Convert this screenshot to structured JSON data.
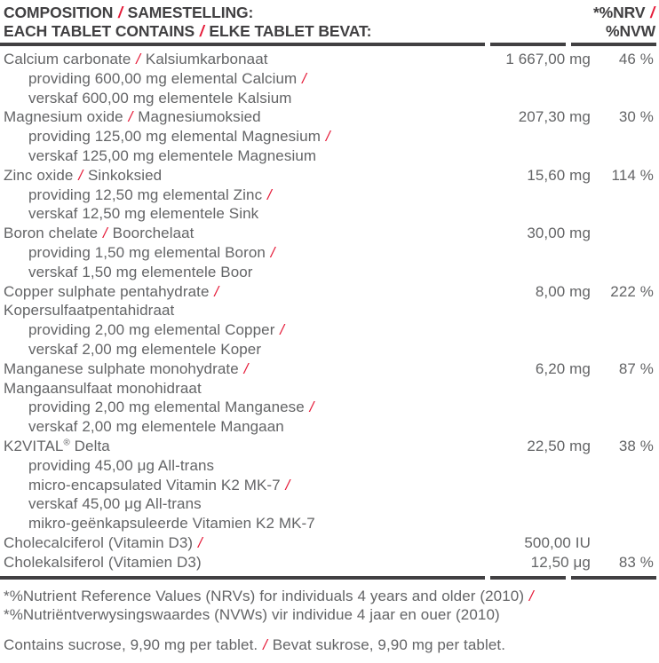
{
  "colors": {
    "header_text": "#414042",
    "body_text": "#636466",
    "slash_accent": "#e51937",
    "rule": "#414042",
    "background": "#ffffff"
  },
  "header": {
    "left_line1": "COMPOSITION / SAMESTELLING:",
    "left_line2": "EACH TABLET CONTAINS / ELKE TABLET BEVAT:",
    "right_line1": "*%NRV /",
    "right_line2": "%NVW"
  },
  "rows": [
    {
      "name_lines": [
        "Calcium carbonate / Kalsiumkarbonaat"
      ],
      "sub_lines": [
        "providing 600,00 mg elemental Calcium /",
        "verskaf 600,00 mg elementele Kalsium"
      ],
      "amount": "1 667,00 mg",
      "nrv": "46 %"
    },
    {
      "name_lines": [
        "Magnesium oxide / Magnesiumoksied"
      ],
      "sub_lines": [
        "providing 125,00 mg elemental Magnesium /",
        "verskaf 125,00 mg elementele Magnesium"
      ],
      "amount": "207,30 mg",
      "nrv": "30 %"
    },
    {
      "name_lines": [
        "Zinc oxide / Sinkoksied"
      ],
      "sub_lines": [
        "providing 12,50 mg elemental Zinc /",
        "verskaf 12,50 mg elementele Sink"
      ],
      "amount": "15,60 mg",
      "nrv": "114 %"
    },
    {
      "name_lines": [
        "Boron chelate / Boorchelaat"
      ],
      "sub_lines": [
        "providing 1,50 mg elemental Boron /",
        "verskaf 1,50 mg elementele Boor"
      ],
      "amount": "30,00 mg",
      "nrv": ""
    },
    {
      "name_lines": [
        "Copper sulphate pentahydrate /",
        "Kopersulfaatpentahidraat"
      ],
      "sub_lines": [
        "providing 2,00 mg elemental Copper /",
        "verskaf 2,00 mg elementele Koper"
      ],
      "amount": "8,00 mg",
      "nrv": "222 %"
    },
    {
      "name_lines": [
        "Manganese sulphate monohydrate /",
        "Mangaansulfaat monohidraat"
      ],
      "sub_lines": [
        "providing 2,00 mg elemental Manganese /",
        "verskaf 2,00 mg elementele Mangaan"
      ],
      "amount": "6,20 mg",
      "nrv": "87 %"
    },
    {
      "name_lines": [
        "K2VITAL® Delta"
      ],
      "sub_lines": [
        "providing 45,00 μg All-trans",
        "micro-encapsulated Vitamin K2 MK-7 /",
        "verskaf 45,00 μg All-trans",
        "mikro-geënkapsuleerde Vitamien K2 MK-7"
      ],
      "amount": "22,50 mg",
      "nrv": "38 %"
    },
    {
      "name_lines": [
        "Cholecalciferol (Vitamin D3) /"
      ],
      "sub_lines": [],
      "amount": "500,00 IU",
      "nrv": ""
    },
    {
      "name_lines": [
        "Cholekalsiferol (Vitamien D3)"
      ],
      "sub_lines": [],
      "amount": "12,50 μg",
      "nrv": "83 %"
    }
  ],
  "footnotes": {
    "line1": "*%Nutrient Reference Values (NRVs) for individuals 4 years and older (2010) /",
    "line2": "*%Nutriëntverwysingswaardes (NVWs) vir individue 4 jaar en ouer (2010)",
    "contains": "Contains sucrose, 9,90 mg per tablet. / Bevat sukrose, 9,90 mg per tablet."
  }
}
